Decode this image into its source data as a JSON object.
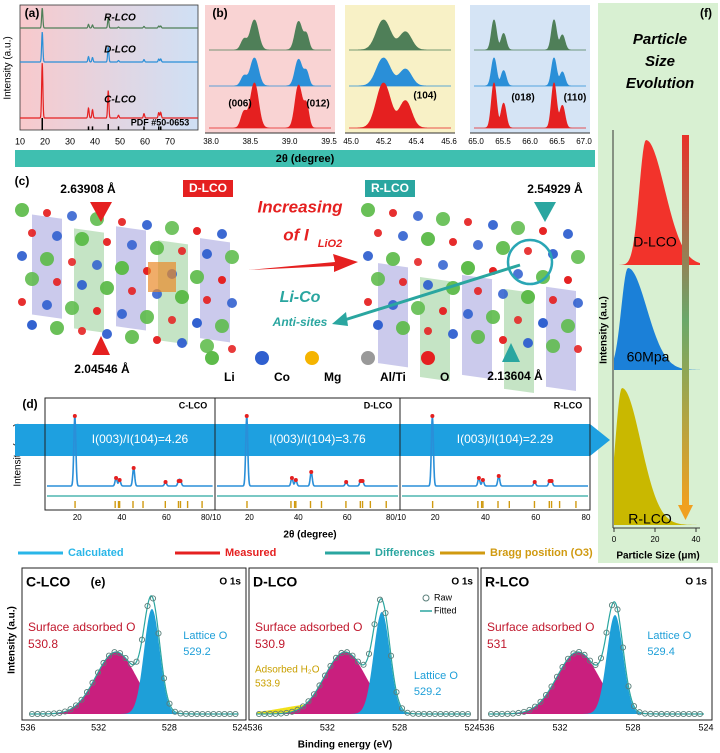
{
  "panel_a": {
    "label": "(a)",
    "y_axis": "Intensity (a.u.)",
    "samples": [
      "R-LCO",
      "D-LCO",
      "C-LCO"
    ],
    "reference": "PDF #50-0653",
    "xticks": [
      "10",
      "20",
      "30",
      "40",
      "50",
      "60",
      "70"
    ]
  },
  "panel_b": {
    "label": "(b)",
    "ranges": [
      {
        "xticks": [
          "38.0",
          "38.5",
          "39.0",
          "39.5"
        ],
        "peaks": [
          "(006)",
          "(012)"
        ]
      },
      {
        "xticks": [
          "45.0",
          "45.2",
          "45.4",
          "45.6"
        ],
        "peaks": [
          "(104)"
        ]
      },
      {
        "xticks": [
          "65.0",
          "65.5",
          "66.0",
          "66.5",
          "67.0"
        ],
        "peaks": [
          "(018)",
          "(110)"
        ]
      }
    ]
  },
  "x_axis": "2θ (degree)",
  "panel_c": {
    "label": "(c)",
    "left_top": "2.63908 Å",
    "left_bottom": "2.04546 Å",
    "left_name": "D-LCO",
    "right_name": "R-LCO",
    "right_top": "2.54929 Å",
    "right_bottom": "2.13604 Å",
    "increasing": "Increasing",
    "of_i": "of I",
    "of_i_sub": "LiO2",
    "antisite_1": "Li-Co",
    "antisite_2": "Anti-sites",
    "legend": [
      "Li",
      "Co",
      "Mg",
      "Al/Ti",
      "O"
    ]
  },
  "panel_d": {
    "label": "(d)",
    "y_axis": "Intensity (a.u.)",
    "x_axis": "2θ (degree)",
    "samples": [
      {
        "name": "C-LCO",
        "ratio": "I(003)/I(104)=4.26",
        "xticks": [
          "20",
          "40",
          "60",
          "80/10"
        ]
      },
      {
        "name": "D-LCO",
        "ratio": "I(003)/I(104)=3.76",
        "xticks": [
          "20",
          "40",
          "60",
          "80/10"
        ]
      },
      {
        "name": "R-LCO",
        "ratio": "I(003)/I(104)=2.29",
        "xticks": [
          "20",
          "40",
          "60",
          "80"
        ]
      }
    ],
    "legend": [
      "Calculated",
      "Measured",
      "Differences",
      "Bragg position (O3)"
    ]
  },
  "panel_e": {
    "label": "(e)",
    "x_axis": "Binding energy (eV)",
    "y_axis": "Intensity (a.u.)",
    "legend": [
      "Raw",
      "Fitted"
    ],
    "spectra": [
      {
        "name": "C-LCO",
        "core": "O 1s",
        "surface": "Surface adsorbed O",
        "surface_be": "530.8",
        "lattice": "Lattice O",
        "lattice_be": "529.2",
        "xticks": [
          "536",
          "532",
          "528",
          "524"
        ]
      },
      {
        "name": "D-LCO",
        "core": "O 1s",
        "surface": "Surface adsorbed O",
        "surface_be": "530.9",
        "water": "Adsorbed H₂O",
        "water_be": "533.9",
        "lattice": "Lattice O",
        "lattice_be": "529.2",
        "xticks": [
          "536",
          "532",
          "528",
          "524"
        ]
      },
      {
        "name": "R-LCO",
        "core": "O 1s",
        "surface": "Surface adsorbed O",
        "surface_be": "531",
        "lattice": "Lattice O",
        "lattice_be": "529.4",
        "xticks": [
          "536",
          "532",
          "528",
          "524"
        ]
      }
    ]
  },
  "panel_f": {
    "label": "(f)",
    "title": [
      "Particle",
      "Size",
      "Evolution"
    ],
    "samples": [
      "D-LCO",
      "60Mpa",
      "R-LCO"
    ],
    "y_axis": "Intensity (a.u.)",
    "x_axis": "Particle Size (μm)",
    "xticks": [
      "0",
      "20",
      "40"
    ]
  }
}
